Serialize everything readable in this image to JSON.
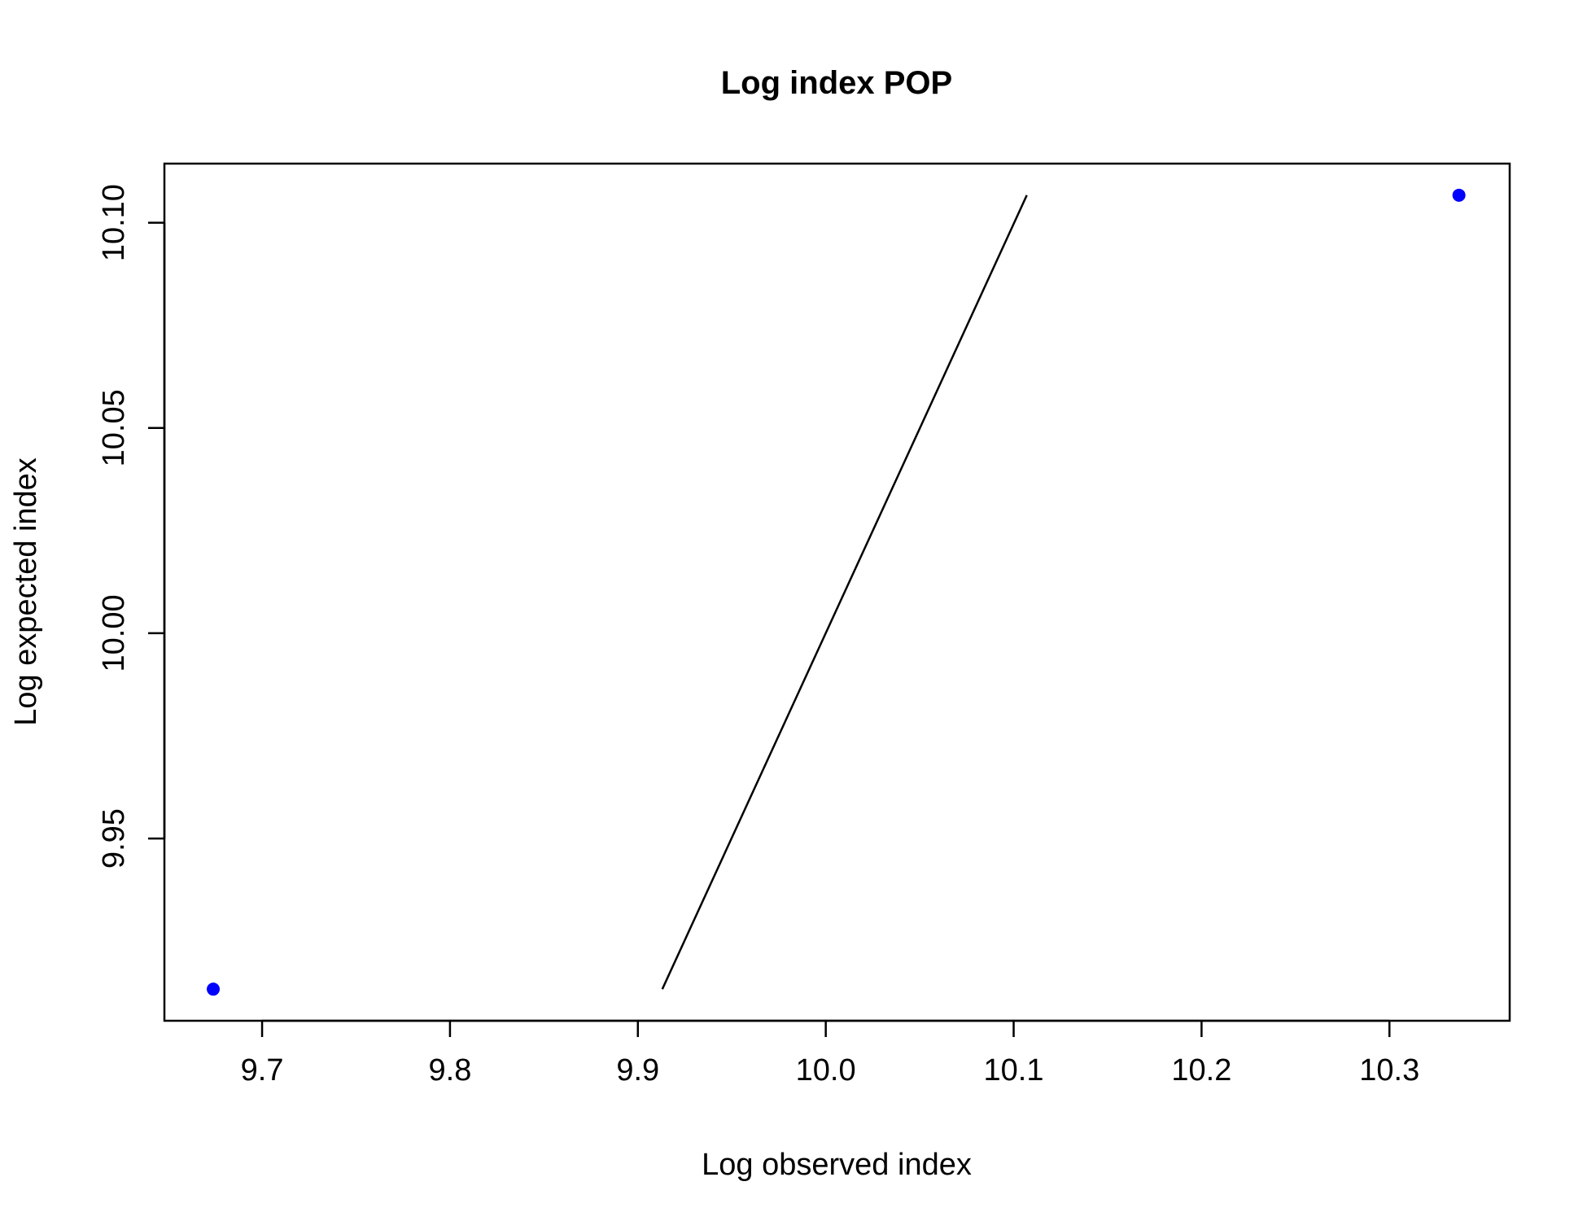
{
  "chart_data": {
    "type": "scatter",
    "title": "Log index POP",
    "xlabel": "Log observed index",
    "ylabel": "Log expected index",
    "xlim": [
      9.648,
      10.364
    ],
    "ylim": [
      9.9056,
      10.1144
    ],
    "x_ticks": [
      9.7,
      9.8,
      9.9,
      10.0,
      10.1,
      10.2,
      10.3
    ],
    "x_tick_labels": [
      "9.7",
      "9.8",
      "9.9",
      "10.0",
      "10.1",
      "10.2",
      "10.3"
    ],
    "y_ticks": [
      9.95,
      10.0,
      10.05,
      10.1
    ],
    "y_tick_labels": [
      "9.95",
      "10.00",
      "10.05",
      "10.10"
    ],
    "points": [
      {
        "x": 9.674,
        "y": 9.9133
      },
      {
        "x": 10.337,
        "y": 10.1067
      }
    ],
    "point_color": "#0000ff",
    "reference_line": {
      "x": [
        9.913,
        10.107
      ],
      "y": [
        9.9133,
        10.1067
      ],
      "color": "#000000"
    },
    "grid": false,
    "legend": "none"
  }
}
